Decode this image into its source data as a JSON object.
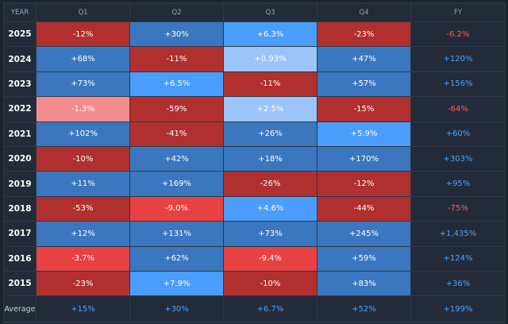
{
  "table": {
    "header": [
      "YEAR",
      "Q1",
      "Q2",
      "Q3",
      "Q4",
      "FY"
    ],
    "rows": [
      [
        "2025",
        "-12%",
        "+30%",
        "+6.3%",
        "-23%",
        "-6.2%"
      ],
      [
        "2024",
        "+68%",
        "-11%",
        "+0.93%",
        "+47%",
        "+120%"
      ],
      [
        "2023",
        "+73%",
        "+6.5%",
        "-11%",
        "+57%",
        "+156%"
      ],
      [
        "2022",
        "-1.3%",
        "-59%",
        "+2.5%",
        "-15%",
        "-64%"
      ],
      [
        "2021",
        "+102%",
        "-41%",
        "+26%",
        "+5.9%",
        "+60%"
      ],
      [
        "2020",
        "-10%",
        "+42%",
        "+18%",
        "+170%",
        "+303%"
      ],
      [
        "2019",
        "+11%",
        "+169%",
        "-26%",
        "-12%",
        "+95%"
      ],
      [
        "2018",
        "-53%",
        "-9.0%",
        "+4.6%",
        "-44%",
        "-75%"
      ],
      [
        "2017",
        "+12%",
        "+131%",
        "+73%",
        "+245%",
        "+1,435%"
      ],
      [
        "2016",
        "-3.7%",
        "+62%",
        "-9.4%",
        "+59%",
        "+124%"
      ],
      [
        "2015",
        "-23%",
        "+7.9%",
        "-10%",
        "+83%",
        "+36%"
      ]
    ],
    "average": [
      "Average",
      "+15%",
      "+30%",
      "+6.7%",
      "+52%",
      "+199%"
    ],
    "cell_colors": [
      [
        "#b0302f",
        "#3a77bf",
        "#4a9dfa",
        "#b0302f"
      ],
      [
        "#3a77bf",
        "#b0302f",
        "#9cc4f8",
        "#3a77bf"
      ],
      [
        "#3a77bf",
        "#4a9dfa",
        "#b0302f",
        "#3a77bf"
      ],
      [
        "#f28d8d",
        "#b0302f",
        "#9cc4f8",
        "#b0302f"
      ],
      [
        "#3a77bf",
        "#b0302f",
        "#3a77bf",
        "#4a9dfa"
      ],
      [
        "#b0302f",
        "#3a77bf",
        "#3a77bf",
        "#3a77bf"
      ],
      [
        "#3a77bf",
        "#3a77bf",
        "#b0302f",
        "#b0302f"
      ],
      [
        "#b0302f",
        "#e84141",
        "#4a9dfa",
        "#b0302f"
      ],
      [
        "#3a77bf",
        "#3a77bf",
        "#3a77bf",
        "#3a77bf"
      ],
      [
        "#e84141",
        "#3a77bf",
        "#e84141",
        "#3a77bf"
      ],
      [
        "#b0302f",
        "#4a9dfa",
        "#b0302f",
        "#3a77bf"
      ]
    ],
    "fy_colors": [
      "#ff5a5a",
      "#4da3ff",
      "#4da3ff",
      "#ff5a5a",
      "#4da3ff",
      "#4da3ff",
      "#4da3ff",
      "#ff5a5a",
      "#4da3ff",
      "#4da3ff",
      "#4da3ff"
    ],
    "average_color": "#4da3ff"
  }
}
